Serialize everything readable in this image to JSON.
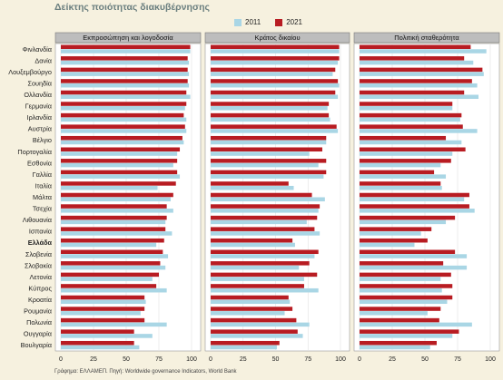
{
  "title": "Δείκτης ποιότητας διακυβέρνησης",
  "source": "Γράφημα: ΕΛΛΑΜΕΠ. Πηγή: Worldwide governance Indicators, World Bank",
  "colors": {
    "y2011": "#a9d6e5",
    "y2021": "#b81c22",
    "panel_bg": "#ffffff",
    "header_bg": "#bdbdbd",
    "page_bg": "#f6f1df"
  },
  "chart_data": {
    "type": "bar",
    "orientation": "horizontal",
    "legend_position": "top",
    "series_names": [
      "2011",
      "2021"
    ],
    "categories": [
      "Φινλανδία",
      "Δανία",
      "Λουξεμβούργο",
      "Σουηδία",
      "Ολλανδία",
      "Γερμανία",
      "Ιρλανδία",
      "Αυστρία",
      "Βέλγιο",
      "Πορτογαλία",
      "Εσθονία",
      "Γαλλία",
      "Ιταλία",
      "Μάλτα",
      "Τσεχία",
      "Λιθουανία",
      "Ισπανία",
      "Ελλάδα",
      "Σλοβενία",
      "Σλοβακία",
      "Λετονία",
      "Κύπρος",
      "Κροατία",
      "Ρουμανία",
      "Πολωνία",
      "Ουγγαρία",
      "Βουλγαρία"
    ],
    "highlight_category": "Ελλάδα",
    "xlim": [
      0,
      100
    ],
    "ticks": [
      0,
      25,
      50,
      75,
      100
    ],
    "panels": [
      {
        "title": "Εκπροσώπηση και λογοδοσία",
        "series": [
          {
            "name": "2011",
            "values": [
              99,
              98,
              98,
              98,
              99,
              95,
              96,
              96,
              94,
              89,
              86,
              91,
              74,
              84,
              86,
              80,
              85,
              73,
              82,
              80,
              70,
              81,
              65,
              61,
              81,
              70,
              60
            ]
          },
          {
            "name": "2021",
            "values": [
              99,
              97,
              97,
              97,
              96,
              96,
              94,
              95,
              93,
              91,
              89,
              89,
              88,
              86,
              81,
              81,
              80,
              79,
              78,
              76,
              75,
              73,
              64,
              64,
              64,
              56,
              56
            ]
          }
        ]
      },
      {
        "title": "Κράτος δικαίου",
        "series": [
          {
            "name": "2011",
            "values": [
              99,
              98,
              94,
              99,
              98,
              90,
              92,
              98,
              89,
              76,
              83,
              87,
              64,
              88,
              83,
              74,
              84,
              65,
              80,
              68,
              72,
              83,
              61,
              57,
              76,
              71,
              51
            ]
          },
          {
            "name": "2021",
            "values": [
              99,
              99,
              96,
              98,
              96,
              91,
              91,
              97,
              89,
              86,
              89,
              89,
              60,
              78,
              84,
              82,
              80,
              63,
              83,
              76,
              82,
              72,
              60,
              63,
              66,
              67,
              53
            ]
          }
        ]
      },
      {
        "title": "Πολιτική σταθερότητα",
        "series": [
          {
            "name": "2011",
            "values": [
              97,
              87,
              95,
              90,
              91,
              71,
              77,
              90,
              78,
              71,
              62,
              66,
              63,
              80,
              88,
              66,
              47,
              42,
              82,
              82,
              62,
              63,
              67,
              52,
              86,
              71,
              54
            ]
          },
          {
            "name": "2021",
            "values": [
              85,
              80,
              94,
              86,
              80,
              71,
              78,
              79,
              66,
              81,
              70,
              57,
              62,
              84,
              84,
              73,
              55,
              52,
              73,
              64,
              70,
              71,
              71,
              62,
              61,
              76,
              59
            ]
          }
        ]
      }
    ]
  }
}
